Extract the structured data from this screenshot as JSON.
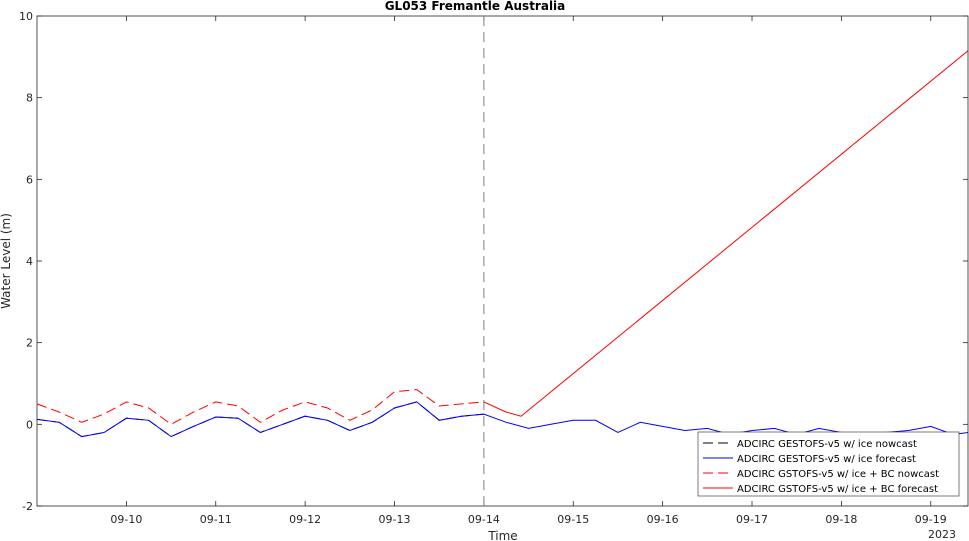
{
  "chart_data": {
    "type": "line",
    "title": "GL053 Fremantle Australia",
    "xlabel": "Time",
    "ylabel": "Water Level (m)",
    "year_label": "2023",
    "xlim": [
      "2023-09-09T00:00",
      "2023-09-19T10:00"
    ],
    "ylim": [
      -2,
      10
    ],
    "yticks": [
      -2,
      0,
      2,
      4,
      6,
      8,
      10
    ],
    "xticks": [
      "09-10",
      "09-11",
      "09-12",
      "09-13",
      "09-14",
      "09-15",
      "09-16",
      "09-17",
      "09-18",
      "09-19"
    ],
    "nowcast_divider": "2023-09-14T00:00",
    "grid": false,
    "legend_position": "bottom-right",
    "series": [
      {
        "name": "ADCIRC GESTOFS-v5 w/ ice nowcast",
        "color": "#000000",
        "style": "dashed",
        "points": [
          [
            "2023-09-09T00:00",
            0.12
          ],
          [
            "2023-09-09T06:00",
            0.05
          ],
          [
            "2023-09-09T12:00",
            -0.3
          ],
          [
            "2023-09-09T18:00",
            -0.2
          ],
          [
            "2023-09-10T00:00",
            0.15
          ],
          [
            "2023-09-10T06:00",
            0.1
          ],
          [
            "2023-09-10T12:00",
            -0.3
          ],
          [
            "2023-09-10T18:00",
            -0.05
          ],
          [
            "2023-09-11T00:00",
            0.18
          ],
          [
            "2023-09-11T06:00",
            0.15
          ],
          [
            "2023-09-11T12:00",
            -0.2
          ],
          [
            "2023-09-11T18:00",
            0.0
          ],
          [
            "2023-09-12T00:00",
            0.2
          ],
          [
            "2023-09-12T06:00",
            0.1
          ],
          [
            "2023-09-12T12:00",
            -0.15
          ],
          [
            "2023-09-12T18:00",
            0.05
          ],
          [
            "2023-09-13T00:00",
            0.4
          ],
          [
            "2023-09-13T06:00",
            0.55
          ],
          [
            "2023-09-13T12:00",
            0.1
          ],
          [
            "2023-09-13T18:00",
            0.2
          ],
          [
            "2023-09-14T00:00",
            0.25
          ]
        ]
      },
      {
        "name": "ADCIRC GESTOFS-v5 w/ ice forecast",
        "color": "#0000ff",
        "style": "solid",
        "points": [
          [
            "2023-09-09T00:00",
            0.12
          ],
          [
            "2023-09-09T06:00",
            0.05
          ],
          [
            "2023-09-09T12:00",
            -0.3
          ],
          [
            "2023-09-09T18:00",
            -0.2
          ],
          [
            "2023-09-10T00:00",
            0.15
          ],
          [
            "2023-09-10T06:00",
            0.1
          ],
          [
            "2023-09-10T12:00",
            -0.3
          ],
          [
            "2023-09-10T18:00",
            -0.05
          ],
          [
            "2023-09-11T00:00",
            0.18
          ],
          [
            "2023-09-11T06:00",
            0.15
          ],
          [
            "2023-09-11T12:00",
            -0.2
          ],
          [
            "2023-09-11T18:00",
            0.0
          ],
          [
            "2023-09-12T00:00",
            0.2
          ],
          [
            "2023-09-12T06:00",
            0.1
          ],
          [
            "2023-09-12T12:00",
            -0.15
          ],
          [
            "2023-09-12T18:00",
            0.05
          ],
          [
            "2023-09-13T00:00",
            0.4
          ],
          [
            "2023-09-13T06:00",
            0.55
          ],
          [
            "2023-09-13T12:00",
            0.1
          ],
          [
            "2023-09-13T18:00",
            0.2
          ],
          [
            "2023-09-14T00:00",
            0.25
          ],
          [
            "2023-09-14T06:00",
            0.05
          ],
          [
            "2023-09-14T12:00",
            -0.1
          ],
          [
            "2023-09-14T18:00",
            0.0
          ],
          [
            "2023-09-15T00:00",
            0.1
          ],
          [
            "2023-09-15T06:00",
            0.1
          ],
          [
            "2023-09-15T12:00",
            -0.2
          ],
          [
            "2023-09-15T18:00",
            0.05
          ],
          [
            "2023-09-16T00:00",
            -0.05
          ],
          [
            "2023-09-16T06:00",
            -0.15
          ],
          [
            "2023-09-16T12:00",
            -0.1
          ],
          [
            "2023-09-16T18:00",
            -0.25
          ],
          [
            "2023-09-17T00:00",
            -0.15
          ],
          [
            "2023-09-17T06:00",
            -0.1
          ],
          [
            "2023-09-17T12:00",
            -0.25
          ],
          [
            "2023-09-17T18:00",
            -0.1
          ],
          [
            "2023-09-18T00:00",
            -0.2
          ],
          [
            "2023-09-18T06:00",
            -0.25
          ],
          [
            "2023-09-18T12:00",
            -0.2
          ],
          [
            "2023-09-18T18:00",
            -0.15
          ],
          [
            "2023-09-19T00:00",
            -0.05
          ],
          [
            "2023-09-19T06:00",
            -0.25
          ],
          [
            "2023-09-19T10:00",
            -0.2
          ]
        ]
      },
      {
        "name": "ADCIRC GSTOFS-v5 w/ ice + BC nowcast",
        "color": "#ff0000",
        "style": "dashed",
        "points": [
          [
            "2023-09-09T00:00",
            0.5
          ],
          [
            "2023-09-09T06:00",
            0.3
          ],
          [
            "2023-09-09T12:00",
            0.05
          ],
          [
            "2023-09-09T18:00",
            0.25
          ],
          [
            "2023-09-10T00:00",
            0.55
          ],
          [
            "2023-09-10T06:00",
            0.4
          ],
          [
            "2023-09-10T12:00",
            0.0
          ],
          [
            "2023-09-10T18:00",
            0.3
          ],
          [
            "2023-09-11T00:00",
            0.55
          ],
          [
            "2023-09-11T06:00",
            0.45
          ],
          [
            "2023-09-11T12:00",
            0.05
          ],
          [
            "2023-09-11T18:00",
            0.35
          ],
          [
            "2023-09-12T00:00",
            0.55
          ],
          [
            "2023-09-12T06:00",
            0.4
          ],
          [
            "2023-09-12T12:00",
            0.1
          ],
          [
            "2023-09-12T18:00",
            0.35
          ],
          [
            "2023-09-13T00:00",
            0.8
          ],
          [
            "2023-09-13T06:00",
            0.85
          ],
          [
            "2023-09-13T12:00",
            0.45
          ],
          [
            "2023-09-13T18:00",
            0.5
          ],
          [
            "2023-09-14T00:00",
            0.55
          ]
        ]
      },
      {
        "name": "ADCIRC GSTOFS-v5 w/ ice + BC forecast",
        "color": "#ff0000",
        "style": "solid",
        "points": [
          [
            "2023-09-14T00:00",
            0.55
          ],
          [
            "2023-09-14T06:00",
            0.3
          ],
          [
            "2023-09-14T10:00",
            0.2
          ],
          [
            "2023-09-19T10:00",
            9.15
          ]
        ]
      }
    ]
  }
}
